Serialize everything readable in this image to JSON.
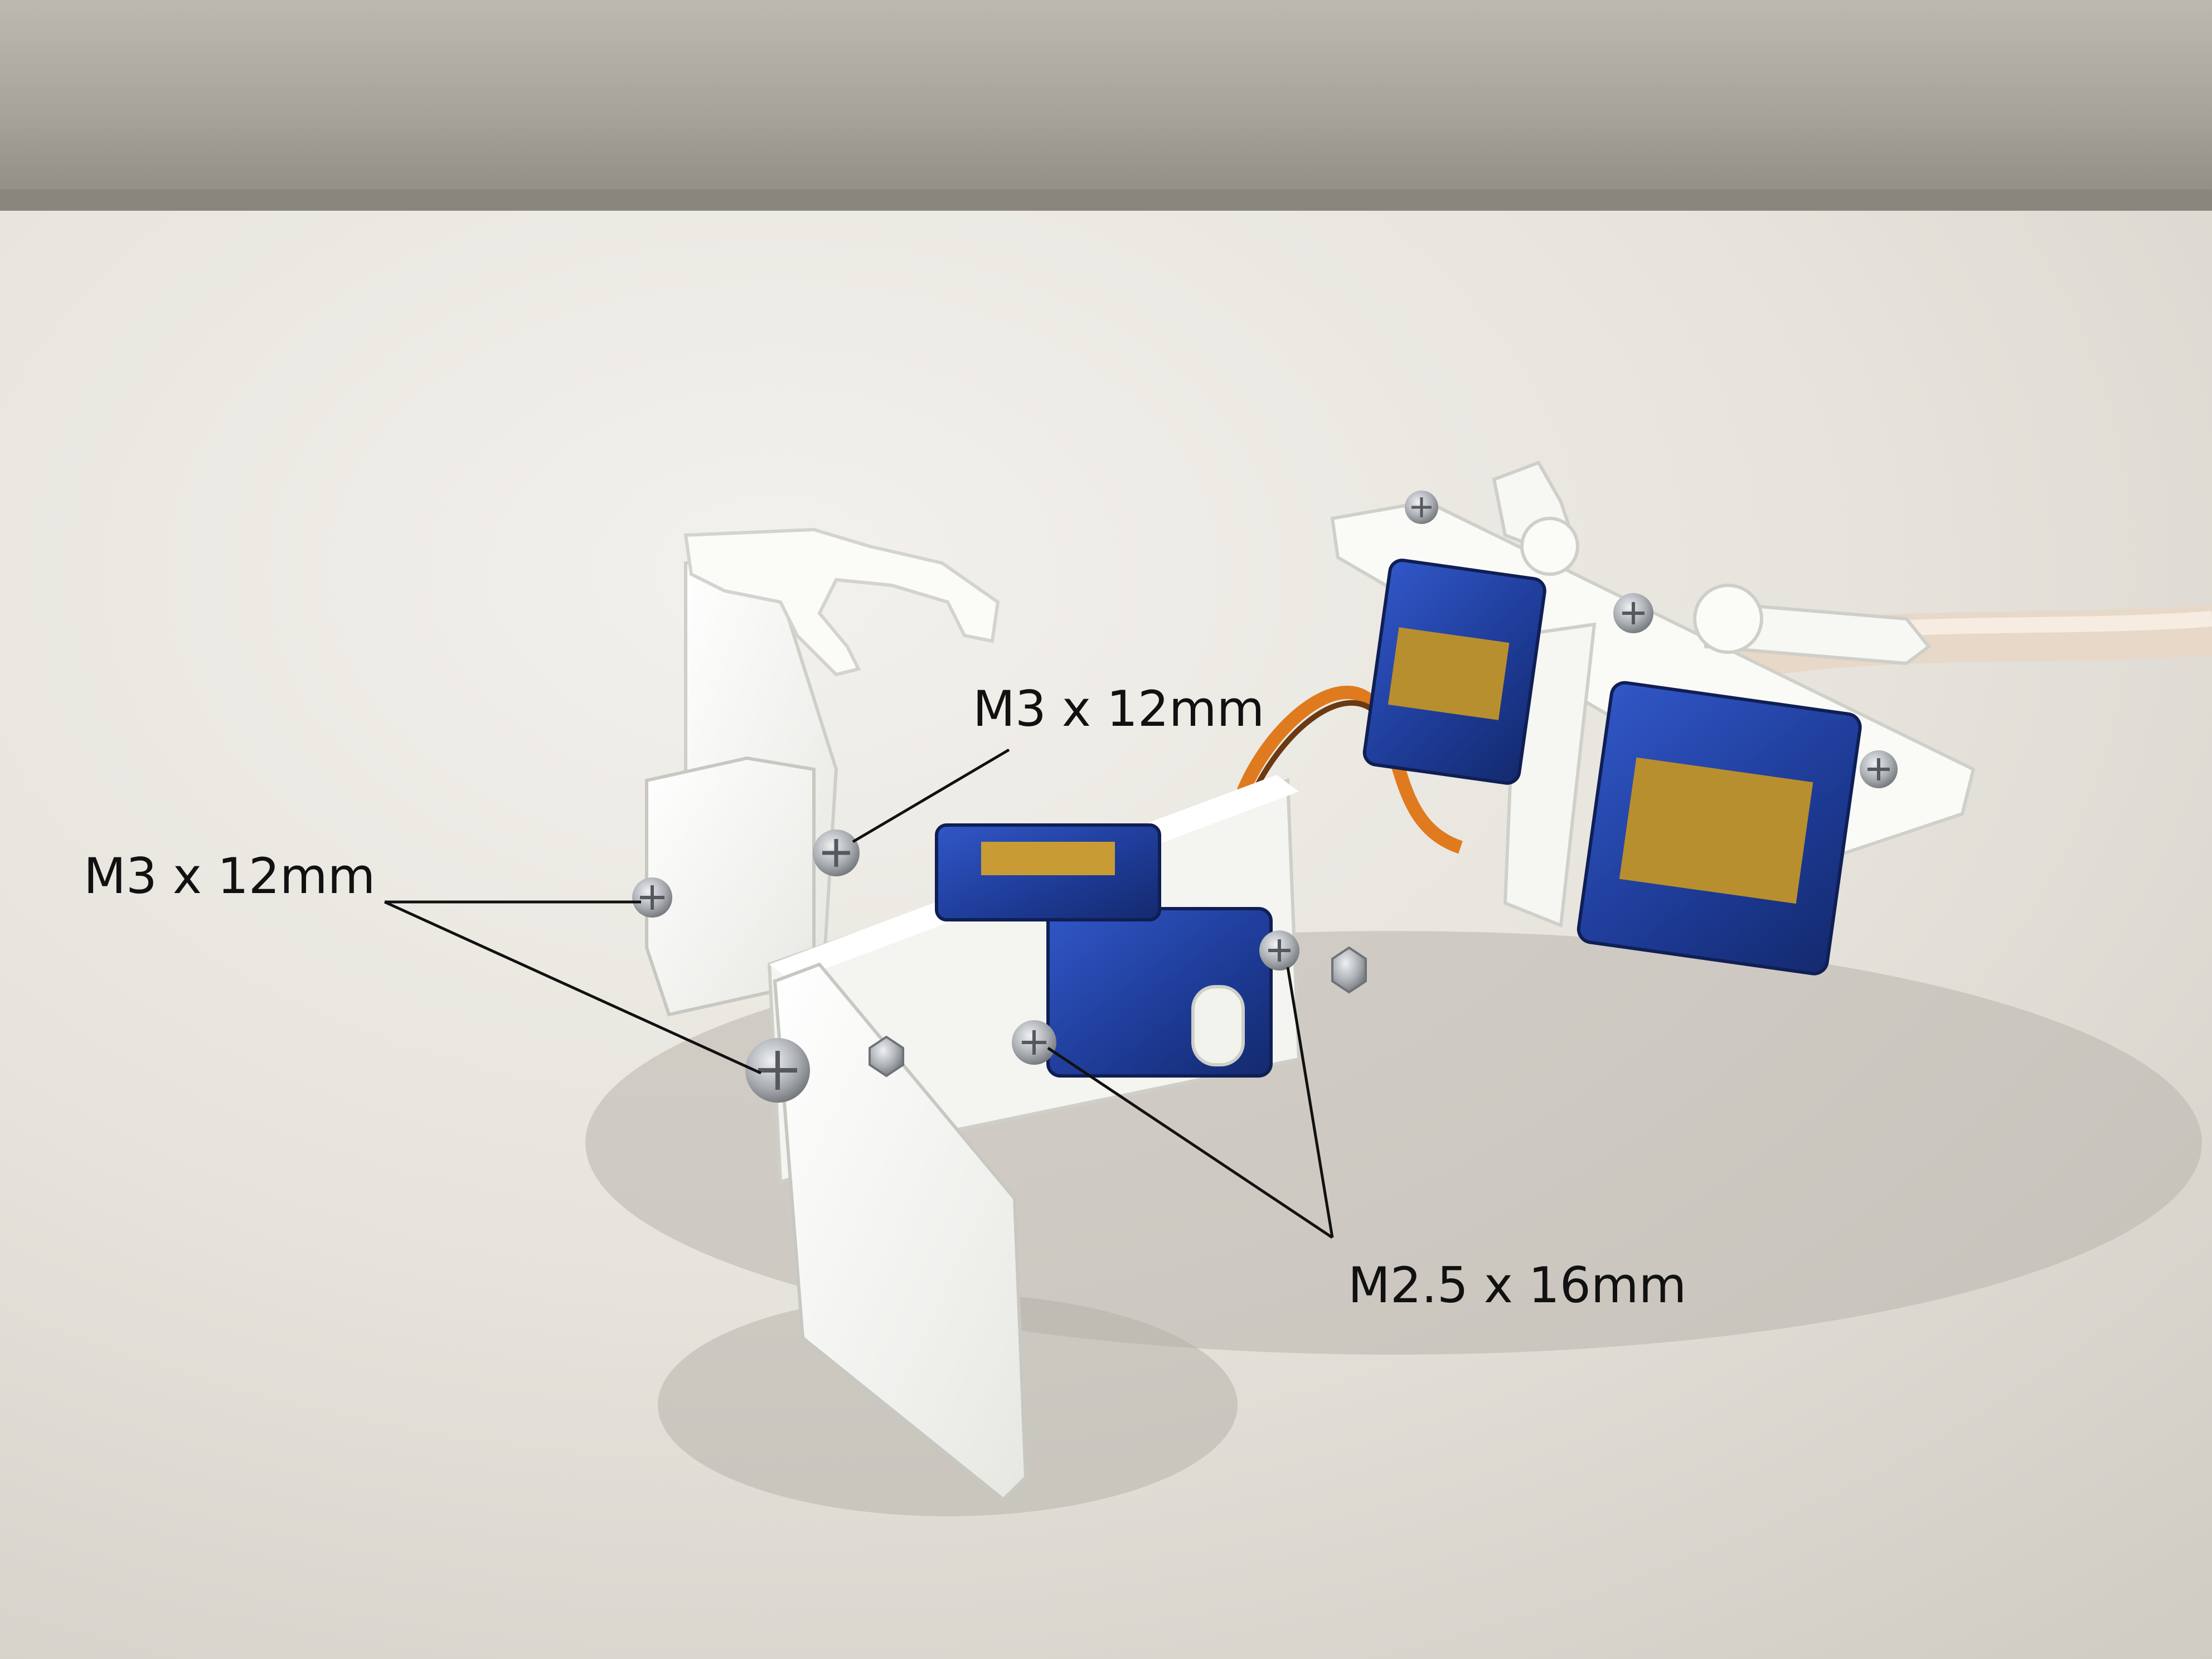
{
  "callouts": {
    "top": "M3 x 12mm",
    "left": "M3 x 12mm",
    "bottom": "M2.5 x 16mm"
  },
  "colors": {
    "backdrop": "#9a968e",
    "surface": "#e9e6df",
    "printed_part": "#f7f7f4",
    "servo_blue": "#1f3f9a",
    "servo_label": "#b08a2e",
    "wire_orange": "#e07a1e",
    "screw_metal": "#b9bcc0",
    "annotation": "#111111"
  },
  "icons": [
    "screw-icon",
    "nut-icon",
    "servo-icon",
    "servo-horn-icon"
  ]
}
